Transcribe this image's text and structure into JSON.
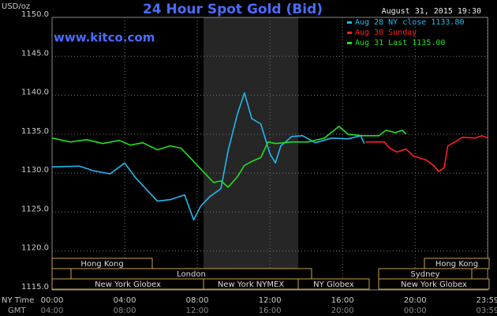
{
  "chart_data": {
    "type": "line",
    "title": "24 Hour Spot Gold (Bid)",
    "subtitle": "www.kitco.com",
    "timestamp": "August 31, 2015 19:30",
    "y_label": "USD/oz",
    "x_label": "NY Time",
    "x2_label": "GMT",
    "xlim": [
      0,
      24
    ],
    "ylim": [
      1115,
      1150
    ],
    "xticks": [
      {
        "value": 0,
        "label": "00:00"
      },
      {
        "value": 4,
        "label": "04:00"
      },
      {
        "value": 8,
        "label": "08:00"
      },
      {
        "value": 12,
        "label": "12:00"
      },
      {
        "value": 16,
        "label": "16:00"
      },
      {
        "value": 20,
        "label": "20:00"
      },
      {
        "value": 23.983,
        "label": "23:59"
      }
    ],
    "x2ticks": [
      "04:00",
      "08:00",
      "12:00",
      "16:00",
      "20:00",
      "00:00",
      "03:59"
    ],
    "yticks": [
      {
        "value": 1115,
        "label": "1115.0"
      },
      {
        "value": 1120,
        "label": "1120.0"
      },
      {
        "value": 1125,
        "label": "1125.0"
      },
      {
        "value": 1130,
        "label": "1130.0"
      },
      {
        "value": 1135,
        "label": "1135.0"
      },
      {
        "value": 1140,
        "label": "1140.0"
      },
      {
        "value": 1145,
        "label": "1145.0"
      },
      {
        "value": 1150,
        "label": "1150.0"
      }
    ],
    "grid": true,
    "sessions": [
      "Hong Kong",
      "Hong Kong",
      "London",
      "Sydney",
      "New York Globex",
      "New York NYMEX",
      "NY Globex",
      "New York Globex"
    ],
    "series": [
      {
        "name": "Aug 28 NY close 1133.80",
        "color": "#22b8f0",
        "x": [
          0,
          1.5,
          2.3,
          3.2,
          4.0,
          4.6,
          5.2,
          5.8,
          6.5,
          7.3,
          7.8,
          8.2,
          8.7,
          9.3,
          9.7,
          10.2,
          10.6,
          11.0,
          11.5,
          12.0,
          12.3,
          12.6,
          13.2,
          13.8,
          14.5,
          15.4,
          16.3,
          17.0,
          17.2
        ],
        "values": [
          1130.8,
          1130.9,
          1130.3,
          1129.9,
          1131.3,
          1129.4,
          1127.9,
          1126.4,
          1126.6,
          1127.2,
          1124.0,
          1125.8,
          1127.0,
          1128.0,
          1132.9,
          1137.5,
          1140.3,
          1137.0,
          1136.3,
          1132.5,
          1131.3,
          1133.5,
          1134.7,
          1134.8,
          1133.9,
          1134.5,
          1134.4,
          1134.8,
          1133.8
        ]
      },
      {
        "name": "Aug 30 Sunday",
        "color": "#ff2020",
        "x": [
          17.26,
          18.3,
          18.6,
          19.0,
          19.5,
          19.9,
          20.6,
          21.0,
          21.3,
          21.6,
          21.8,
          22.2,
          22.6,
          23.3,
          23.7,
          24.0
        ],
        "values": [
          1134.0,
          1134.0,
          1133.2,
          1132.7,
          1133.1,
          1132.2,
          1131.7,
          1131.0,
          1130.2,
          1130.7,
          1133.5,
          1134.0,
          1134.6,
          1134.5,
          1134.8,
          1134.5
        ]
      },
      {
        "name": "Aug 31 Last 1135.00",
        "color": "#20e020",
        "x": [
          0,
          1.0,
          1.9,
          2.8,
          3.7,
          4.3,
          5.0,
          5.8,
          6.5,
          7.1,
          7.6,
          8.0,
          8.4,
          8.9,
          9.3,
          9.7,
          10.2,
          10.6,
          11.0,
          11.5,
          11.9,
          12.3,
          13.2,
          14.1,
          15.0,
          15.8,
          16.3,
          17.1,
          18.0,
          18.4,
          18.9,
          19.3,
          19.5
        ],
        "values": [
          1134.5,
          1134.0,
          1134.3,
          1133.8,
          1134.2,
          1133.6,
          1133.9,
          1133.0,
          1133.5,
          1133.2,
          1132.0,
          1131.0,
          1130.0,
          1128.8,
          1129.0,
          1128.2,
          1129.5,
          1131.0,
          1131.5,
          1132.0,
          1134.0,
          1133.8,
          1134.0,
          1134.0,
          1134.5,
          1136.0,
          1135.0,
          1134.8,
          1134.8,
          1135.5,
          1135.2,
          1135.5,
          1135.0
        ]
      }
    ]
  }
}
